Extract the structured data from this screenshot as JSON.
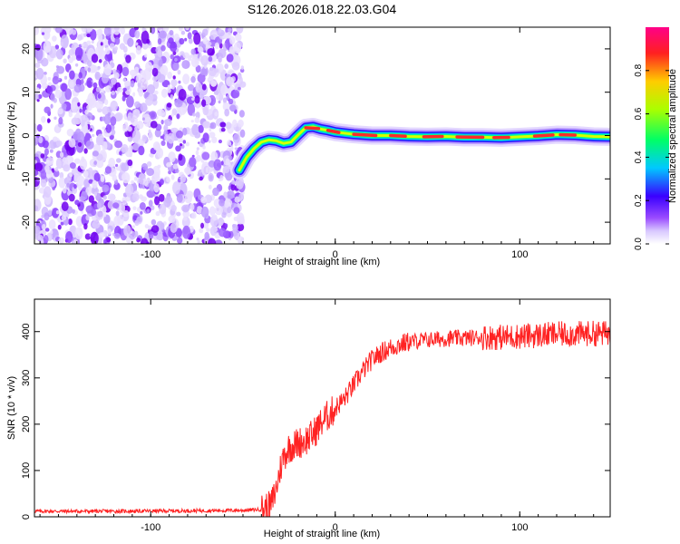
{
  "figure": {
    "title": "S126.2026.018.22.03.G04"
  },
  "chart_data": [
    {
      "type": "heatmap",
      "xlabel": "Height of straight line (km)",
      "ylabel": "Frequency (Hz)",
      "xlim": [
        -163,
        149
      ],
      "ylim": [
        -25,
        25
      ],
      "xticks": [
        -100,
        0,
        100
      ],
      "yticks": [
        -20,
        -10,
        0,
        10,
        20
      ],
      "noise_region_x": [
        -163,
        -50
      ],
      "trace": {
        "x": [
          -52,
          -48,
          -44,
          -40,
          -36,
          -32,
          -28,
          -24,
          -20,
          -16,
          -12,
          -8,
          -4,
          0,
          10,
          20,
          30,
          40,
          50,
          60,
          70,
          80,
          90,
          100,
          110,
          120,
          130,
          140,
          149
        ],
        "y": [
          -8,
          -5,
          -3,
          -1.5,
          -1,
          -1.2,
          -1.8,
          -1.5,
          0.2,
          1.8,
          2,
          1.5,
          1.2,
          0.8,
          0.3,
          0,
          0,
          -0.2,
          -0.3,
          -0.2,
          -0.4,
          -0.4,
          -0.5,
          -0.3,
          -0.1,
          0.2,
          0.1,
          -0.2,
          -0.3
        ]
      },
      "colorbar": {
        "label": "Normalized spectral amplitude",
        "ticks": [
          0.0,
          0.2,
          0.4,
          0.6,
          0.8
        ],
        "tick_labels": [
          "0.0",
          "0.2",
          "0.4",
          "0.6",
          "0.8"
        ]
      }
    },
    {
      "type": "line",
      "xlabel": "Height of straight line (km)",
      "ylabel": "SNR (10 * v/v)",
      "xlim": [
        -163,
        149
      ],
      "ylim": [
        0,
        470
      ],
      "xticks": [
        -100,
        0,
        100
      ],
      "yticks": [
        0,
        100,
        200,
        300,
        400
      ],
      "color": "#ff2222",
      "series": [
        {
          "name": "SNR",
          "x": [
            -163,
            -120,
            -80,
            -50,
            -40,
            -35,
            -32,
            -30,
            -28,
            -25,
            -22,
            -20,
            -18,
            -15,
            -12,
            -10,
            -8,
            -5,
            -2,
            0,
            5,
            10,
            15,
            20,
            25,
            30,
            35,
            40,
            50,
            60,
            70,
            80,
            90,
            100,
            110,
            120,
            130,
            140,
            149
          ],
          "values": [
            12,
            12,
            13,
            14,
            16,
            22,
            60,
            100,
            130,
            150,
            155,
            160,
            162,
            168,
            178,
            190,
            200,
            215,
            225,
            235,
            255,
            285,
            315,
            340,
            355,
            365,
            372,
            378,
            382,
            385,
            386,
            388,
            388,
            390,
            392,
            394,
            395,
            396,
            396
          ]
        }
      ]
    }
  ]
}
